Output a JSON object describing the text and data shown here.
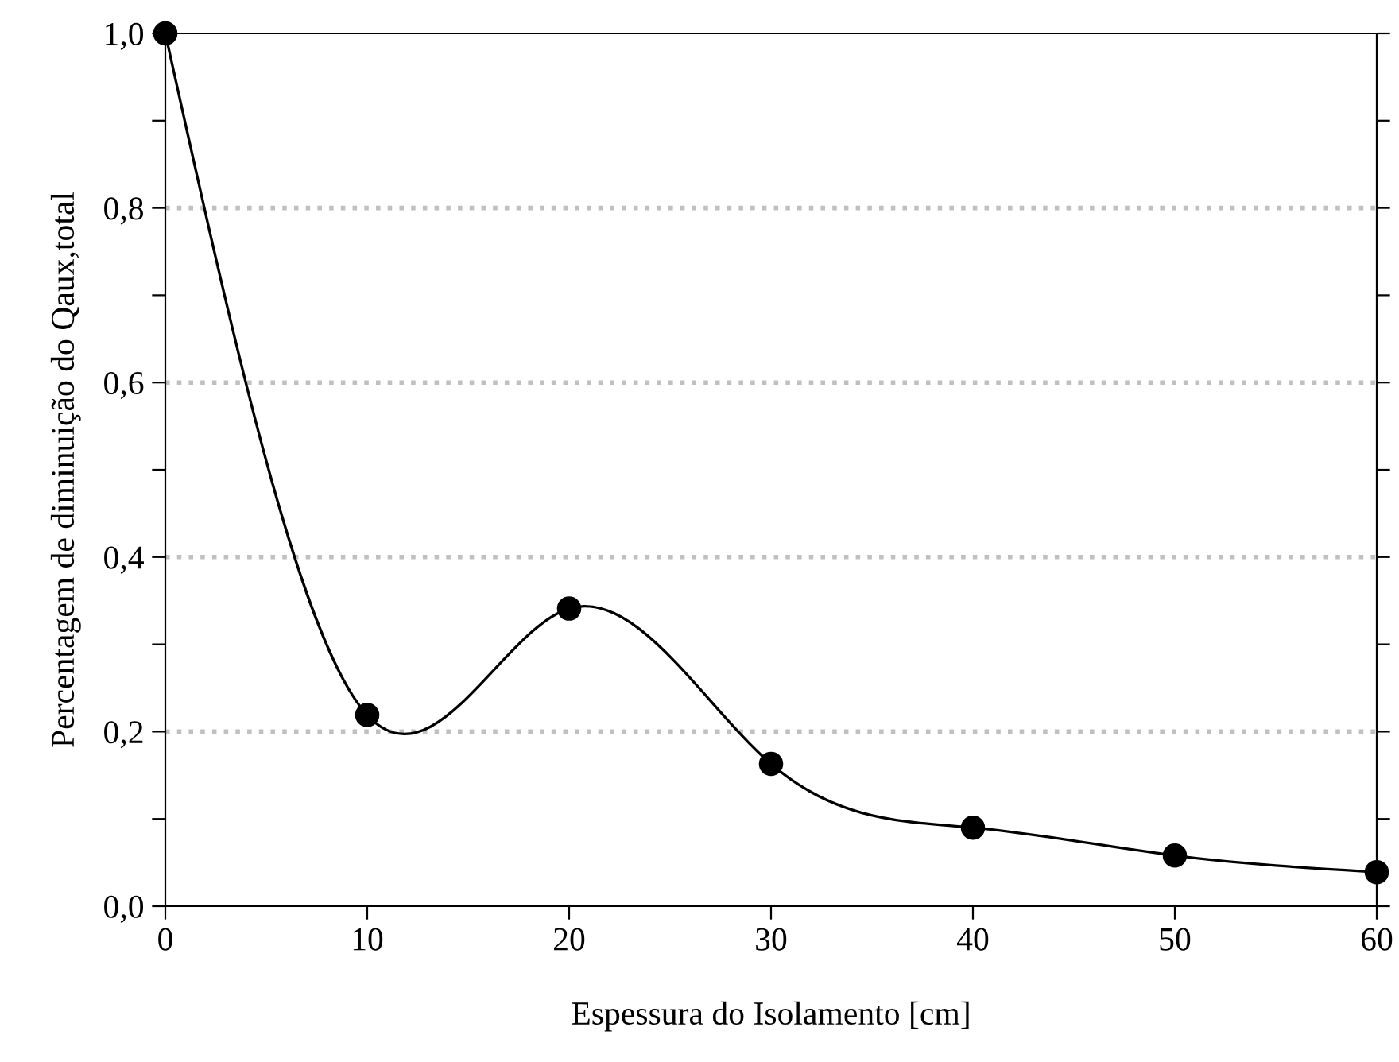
{
  "chart_data": {
    "type": "line",
    "xlabel": "Espessura do Isolamento [cm]",
    "ylabel": "Percentagem de diminuição do Qaux,total",
    "x": [
      0,
      10,
      20,
      30,
      40,
      50,
      60
    ],
    "series": [
      {
        "color": "#000000",
        "values": [
          1.0,
          0.219,
          0.341,
          0.163,
          0.09,
          0.058,
          0.039
        ]
      }
    ],
    "marker": "circle",
    "line_style": "solid",
    "xlim": [
      0,
      60
    ],
    "xticks": [
      0,
      10,
      20,
      30,
      40,
      50,
      60
    ],
    "ylim": [
      0,
      1.0
    ],
    "yticks": [
      {
        "value": 0,
        "label": "0,0"
      },
      {
        "value": 0.1,
        "label": null
      },
      {
        "value": 0.2,
        "label": "0,2"
      },
      {
        "value": 0.3,
        "label": null
      },
      {
        "value": 0.4,
        "label": "0,4"
      },
      {
        "value": 0.5,
        "label": null
      },
      {
        "value": 0.6,
        "label": "0,6"
      },
      {
        "value": 0.7,
        "label": null
      },
      {
        "value": 0.8,
        "label": "0,8"
      },
      {
        "value": 0.9,
        "label": null
      },
      {
        "value": 1.0,
        "label": "1,0"
      }
    ],
    "ref_lines": [
      {
        "axis": "y",
        "value": 0.2,
        "color": "#c0c0c0",
        "line_style": "dotted"
      },
      {
        "axis": "y",
        "value": 0.4,
        "color": "#c0c0c0",
        "line_style": "dotted"
      },
      {
        "axis": "y",
        "value": 0.6,
        "color": "#c0c0c0",
        "line_style": "dotted"
      },
      {
        "axis": "y",
        "value": 0.8,
        "color": "#c0c0c0",
        "line_style": "dotted"
      }
    ]
  }
}
